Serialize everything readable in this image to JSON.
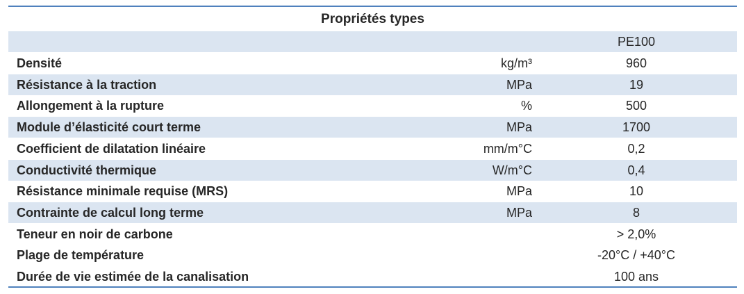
{
  "table": {
    "title": "Propriétés types",
    "header": "PE100",
    "rows": [
      {
        "label": "Densité",
        "unit": "kg/m³",
        "value": "960"
      },
      {
        "label": "Résistance à la traction",
        "unit": "MPa",
        "value": "19"
      },
      {
        "label": "Allongement à la rupture",
        "unit": "%",
        "value": "500"
      },
      {
        "label": "Module d’élasticité court terme",
        "unit": "MPa",
        "value": "1700"
      },
      {
        "label": "Coefficient de dilatation linéaire",
        "unit": "mm/m°C",
        "value": "0,2"
      },
      {
        "label": "Conductivité thermique",
        "unit": "W/m°C",
        "value": "0,4"
      },
      {
        "label": "Résistance minimale requise (MRS)",
        "unit": "MPa",
        "value": "10"
      },
      {
        "label": "Contrainte de calcul long terme",
        "unit": "MPa",
        "value": "8"
      },
      {
        "label": "Teneur en noir de carbone",
        "value": "> 2,0%"
      },
      {
        "label": "Plage de température",
        "value": "-20°C / +40°C"
      },
      {
        "label": "Durée de vie estimée de la canalisation",
        "value": "100 ans"
      }
    ]
  }
}
